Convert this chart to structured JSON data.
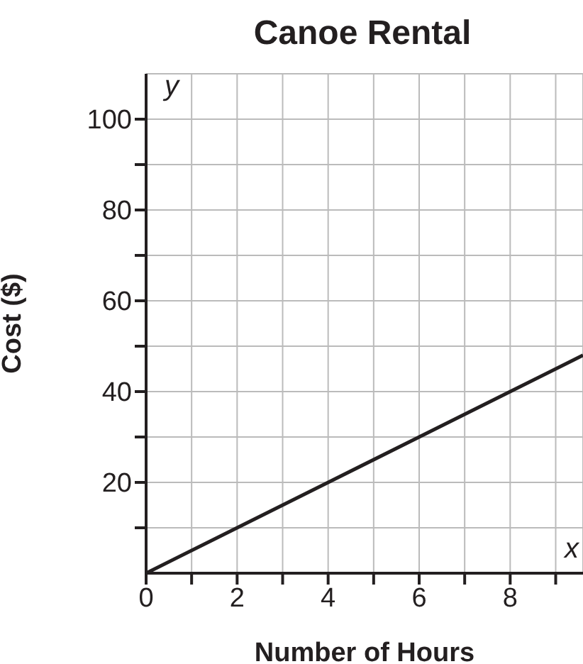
{
  "chart_data": {
    "type": "line",
    "title": "Canoe Rental",
    "xlabel": "Number of Hours",
    "ylabel": "Cost ($)",
    "annotations": [
      "y",
      "x"
    ],
    "x": [
      0,
      2,
      4,
      6,
      8,
      9.6
    ],
    "series": [
      {
        "color": "#231f20",
        "values": [
          0,
          10,
          20,
          30,
          40,
          48
        ]
      }
    ],
    "xlim": [
      0,
      9.6
    ],
    "ylim": [
      0,
      110
    ],
    "xticks": [
      0,
      {
        "value": 1,
        "label": null
      },
      2,
      {
        "value": 3,
        "label": null
      },
      4,
      {
        "value": 5,
        "label": null
      },
      6,
      {
        "value": 7,
        "label": null
      },
      8,
      {
        "value": 9,
        "label": null
      }
    ],
    "yticks": [
      {
        "value": 10,
        "label": null
      },
      20,
      {
        "value": 30,
        "label": null
      },
      40,
      {
        "value": 50,
        "label": null
      },
      60,
      {
        "value": 70,
        "label": null
      },
      80,
      {
        "value": 90,
        "label": null
      },
      100
    ],
    "grid": true,
    "marker": "none",
    "line_style": "solid"
  }
}
